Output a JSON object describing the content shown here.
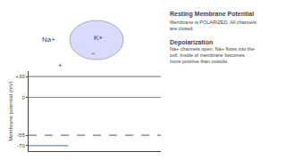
{
  "chart_data": {
    "type": "line",
    "title": "Resting Membrane Potential",
    "subtitle": "Membrane is POLARIZED. All channels\nare closed.",
    "ylabel": "Membrane potential (mV)",
    "annotations": [
      "Na+",
      "K+",
      "+",
      "−",
      "Depolarization",
      "Na+ channels open, Na+ flows into the\ncell. Inside of membrane becomes\nmore positive than outside."
    ],
    "x": [
      0,
      3,
      10
    ],
    "series": [
      {
        "color": "#888888",
        "line_style": "solid",
        "values": [
          30,
          30,
          30
        ]
      },
      {
        "color": "#888888",
        "line_style": "solid",
        "values": [
          0,
          0,
          0
        ]
      },
      {
        "color": "#777777",
        "line_style": "dashed",
        "values": [
          -55,
          -55,
          -55
        ]
      },
      {
        "color": "#7788bb",
        "line_style": "solid",
        "values": [
          -70,
          -70,
          null
        ]
      }
    ],
    "xlim": [
      0,
      10
    ],
    "ylim": [
      -78,
      38
    ],
    "yticks": [
      {
        "value": 30,
        "label": "+30"
      },
      0,
      -55,
      -70
    ],
    "tick_labels": "y",
    "grid": false
  }
}
